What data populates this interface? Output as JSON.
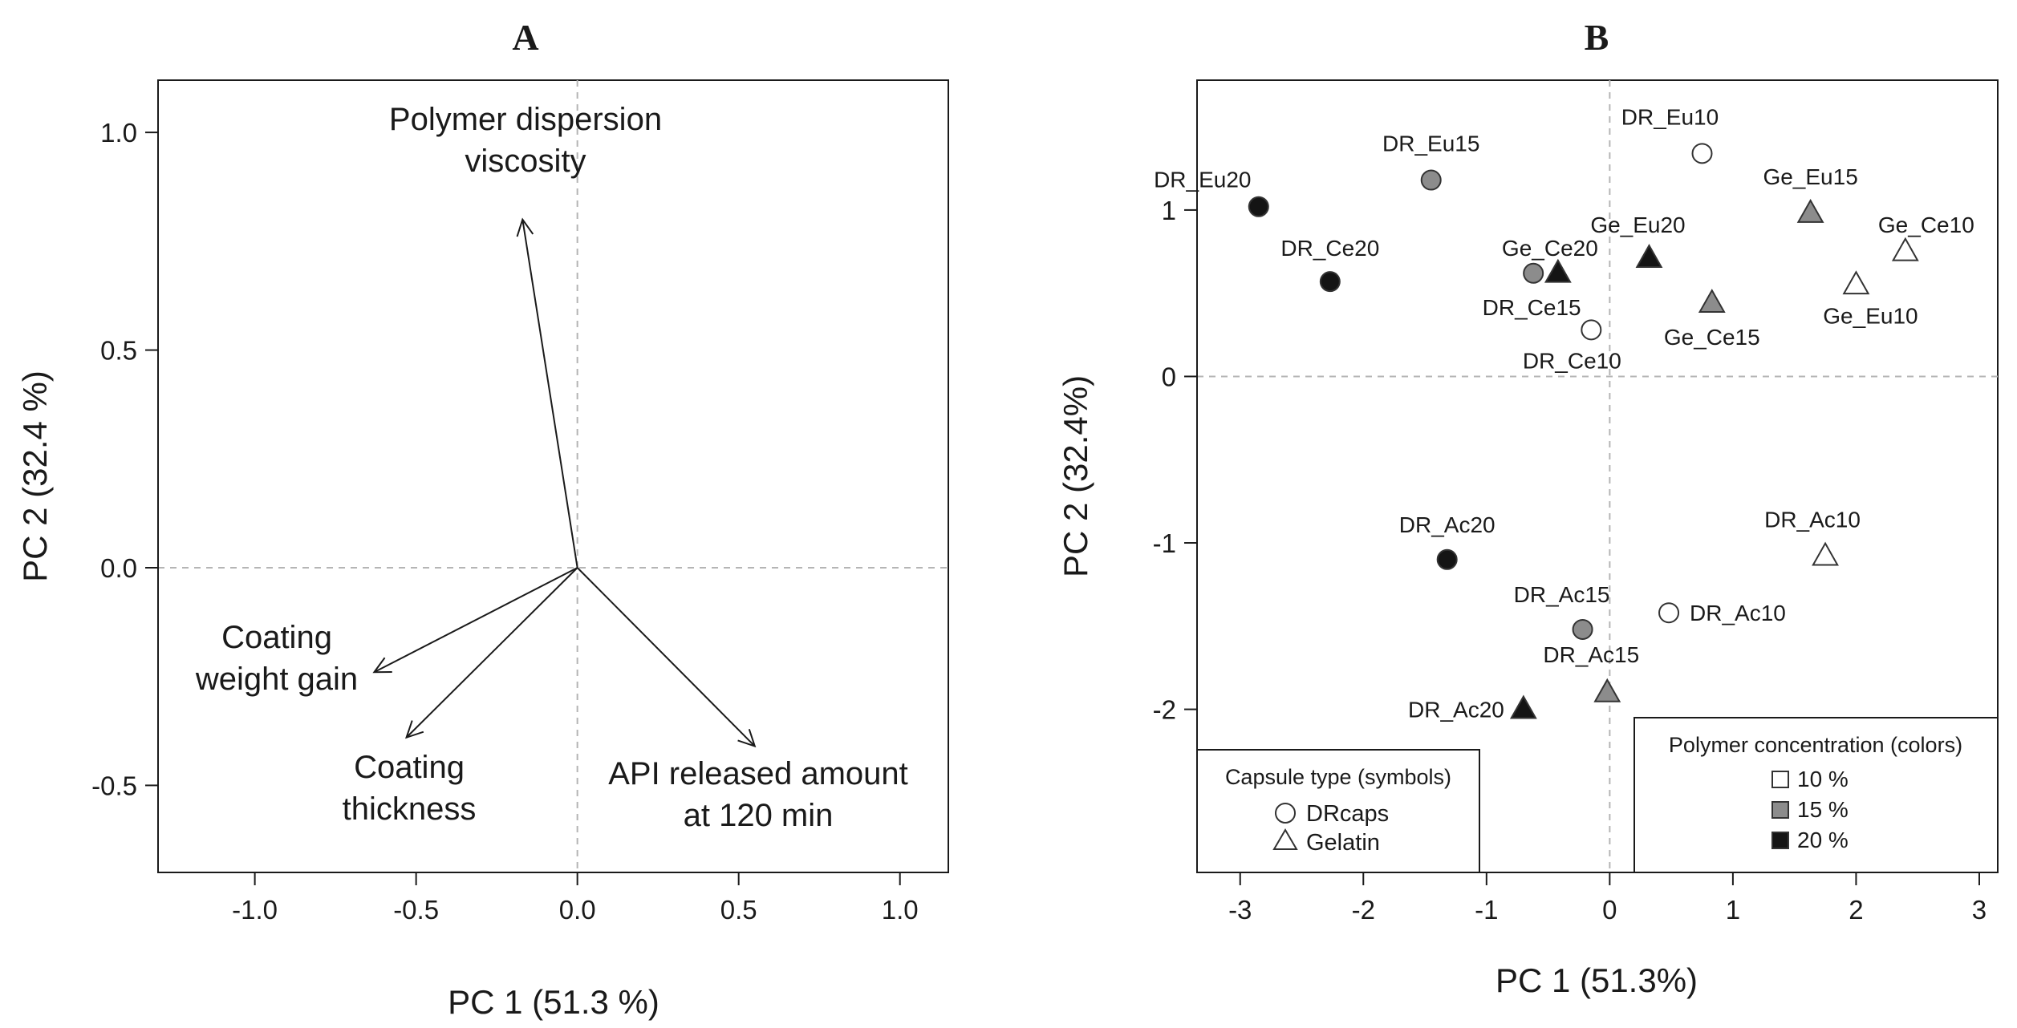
{
  "chart_data": [
    {
      "type": "scatter",
      "subtype": "biplot-loadings",
      "panel_label": "A",
      "xlabel": "PC 1 (51.3 %)",
      "ylabel": "PC 2 (32.4 %)",
      "xlim": [
        -1.3,
        1.15
      ],
      "ylim": [
        -0.7,
        1.12
      ],
      "xticks": [
        -1.0,
        -0.5,
        0.0,
        0.5,
        1.0
      ],
      "xtick_labels": [
        "-1.0",
        "-0.5",
        "0.0",
        "0.5",
        "1.0"
      ],
      "yticks": [
        -0.5,
        0.0,
        0.5,
        1.0
      ],
      "ytick_labels": [
        "-0.5",
        "0.0",
        "0.5",
        "1.0"
      ],
      "reference_lines": {
        "x": 0,
        "y": 0
      },
      "vectors": [
        {
          "name": "viscosity",
          "lines": [
            "Polymer dispersion",
            "viscosity"
          ],
          "x": -0.17,
          "y": 0.8
        },
        {
          "name": "weight-gain",
          "lines": [
            "Coating",
            "weight gain"
          ],
          "x": -0.63,
          "y": -0.24
        },
        {
          "name": "thickness",
          "lines": [
            "Coating",
            "thickness"
          ],
          "x": -0.53,
          "y": -0.39
        },
        {
          "name": "api-released",
          "lines": [
            "API released amount",
            "at 120 min"
          ],
          "x": 0.55,
          "y": -0.41
        }
      ]
    },
    {
      "type": "scatter",
      "subtype": "scores",
      "panel_label": "B",
      "xlabel": "PC 1 (51.3%)",
      "ylabel": "PC 2 (32.4%)",
      "xlim": [
        -3.35,
        3.15
      ],
      "ylim": [
        -2.98,
        1.78
      ],
      "xticks": [
        -3,
        -2,
        -1,
        0,
        1,
        2,
        3
      ],
      "xtick_labels": [
        "-3",
        "-2",
        "-1",
        "0",
        "1",
        "2",
        "3"
      ],
      "yticks": [
        -2,
        -1,
        0,
        1
      ],
      "ytick_labels": [
        "-2",
        "-1",
        "0",
        "1"
      ],
      "reference_lines": {
        "x": 0,
        "y": 0
      },
      "series": [
        {
          "label": "DR_Eu20",
          "capsule": "DRcaps",
          "concentration": "20 %",
          "x": -2.85,
          "y": 1.02
        },
        {
          "label": "DR_Eu15",
          "capsule": "DRcaps",
          "concentration": "15 %",
          "x": -1.45,
          "y": 1.18
        },
        {
          "label": "DR_Eu10",
          "capsule": "DRcaps",
          "concentration": "10 %",
          "x": 0.75,
          "y": 1.34
        },
        {
          "label": "DR_Ce20",
          "capsule": "DRcaps",
          "concentration": "20 %",
          "x": -2.27,
          "y": 0.57
        },
        {
          "label": "DR_Ce15",
          "capsule": "DRcaps",
          "concentration": "15 %",
          "x": -0.62,
          "y": 0.62
        },
        {
          "label": "DR_Ce10",
          "capsule": "DRcaps",
          "concentration": "10 %",
          "x": -0.15,
          "y": 0.28
        },
        {
          "label": "Ge_Eu15",
          "capsule": "Gelatin",
          "concentration": "15 %",
          "x": 1.63,
          "y": 0.98
        },
        {
          "label": "Ge_Ce10",
          "capsule": "Gelatin",
          "concentration": "10 %",
          "x": 2.4,
          "y": 0.75
        },
        {
          "label": "Ge_Eu20",
          "capsule": "Gelatin",
          "concentration": "20 %",
          "x": 0.32,
          "y": 0.71
        },
        {
          "label": "Ge_Ce20",
          "capsule": "Gelatin",
          "concentration": "20 %",
          "x": -0.42,
          "y": 0.62
        },
        {
          "label": "Ge_Ce15",
          "capsule": "Gelatin",
          "concentration": "15 %",
          "x": 0.83,
          "y": 0.44
        },
        {
          "label": "Ge_Eu10",
          "capsule": "Gelatin",
          "concentration": "10 %",
          "x": 2.0,
          "y": 0.55
        },
        {
          "label": "DR_Ac20",
          "capsule": "DRcaps",
          "concentration": "20 %",
          "x": -1.32,
          "y": -1.1
        },
        {
          "label": "DR_Ac15",
          "capsule": "DRcaps",
          "concentration": "15 %",
          "x": -0.22,
          "y": -1.52
        },
        {
          "label": "DR_Ac10",
          "capsule": "DRcaps",
          "concentration": "10 %",
          "x": 0.48,
          "y": -1.42
        },
        {
          "label": "DR_Ac10",
          "capsule": "Gelatin",
          "concentration": "10 %",
          "x": 1.75,
          "y": -1.08
        },
        {
          "label": "DR_Ac15",
          "capsule": "Gelatin",
          "concentration": "15 %",
          "x": -0.02,
          "y": -1.9
        },
        {
          "label": "DR_Ac20",
          "capsule": "Gelatin",
          "concentration": "20 %",
          "x": -0.7,
          "y": -2.0
        }
      ],
      "legend_capsule": {
        "title": "Capsule type (symbols)",
        "entries": [
          {
            "label": "DRcaps",
            "symbol": "circle"
          },
          {
            "label": "Gelatin",
            "symbol": "triangle"
          }
        ],
        "placement": "bottom-left"
      },
      "legend_concentration": {
        "title": "Polymer concentration (colors)",
        "entries": [
          {
            "label": "10 %",
            "color": "#ffffff"
          },
          {
            "label": "15 %",
            "color": "#8c8c8c"
          },
          {
            "label": "20 %",
            "color": "#141414"
          }
        ],
        "placement": "bottom-right"
      }
    }
  ]
}
